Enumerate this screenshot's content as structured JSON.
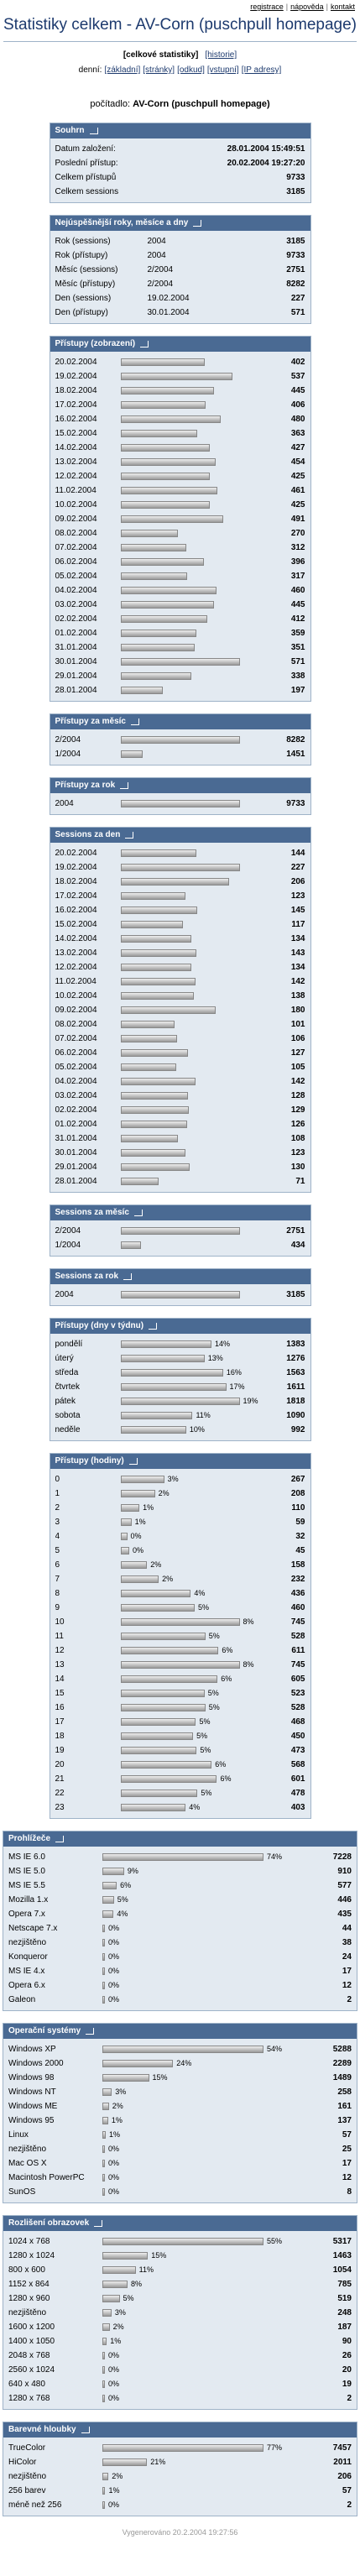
{
  "top_links": [
    "registrace",
    "nápověda",
    "kontakt"
  ],
  "title": "Statistiky celkem - AV-Corn (puschpull homepage)",
  "nav": {
    "current": "[celkové statistiky]",
    "history": "[historie]"
  },
  "daily": {
    "label": "denní:",
    "links": [
      "[základní]",
      "[stránky]",
      "[odkud]",
      "[vstupní]",
      "[IP adresy]"
    ]
  },
  "counter": {
    "label": "počítadlo:",
    "name": "AV-Corn (puschpull homepage)"
  },
  "sections": [
    {
      "title": "Souhrn",
      "rows": [
        {
          "label": "Datum založení:",
          "value": "28.01.2004 15:49:51"
        },
        {
          "label": "Poslední přístup:",
          "value": "20.02.2004 19:27:20"
        },
        {
          "label": "Celkem přístupů",
          "value": 9733
        },
        {
          "label": "Celkem sessions",
          "value": 3185
        }
      ]
    },
    {
      "title": "Nejúspěšnější roky, měsíce a dny",
      "rows": [
        {
          "label": "Rok (sessions)",
          "key": "2004",
          "value": 3185
        },
        {
          "label": "Rok (přístupy)",
          "key": "2004",
          "value": 9733
        },
        {
          "label": "Měsíc (sessions)",
          "key": "2/2004",
          "value": 2751
        },
        {
          "label": "Měsíc (přístupy)",
          "key": "2/2004",
          "value": 8282
        },
        {
          "label": "Den (sessions)",
          "key": "19.02.2004",
          "value": 227
        },
        {
          "label": "Den (přístupy)",
          "key": "30.01.2004",
          "value": 571
        }
      ]
    },
    {
      "title": "Přístupy (zobrazení)",
      "bars": [
        {
          "label": "20.02.2004",
          "value": 402
        },
        {
          "label": "19.02.2004",
          "value": 537
        },
        {
          "label": "18.02.2004",
          "value": 445
        },
        {
          "label": "17.02.2004",
          "value": 406
        },
        {
          "label": "16.02.2004",
          "value": 480
        },
        {
          "label": "15.02.2004",
          "value": 363
        },
        {
          "label": "14.02.2004",
          "value": 427
        },
        {
          "label": "13.02.2004",
          "value": 454
        },
        {
          "label": "12.02.2004",
          "value": 425
        },
        {
          "label": "11.02.2004",
          "value": 461
        },
        {
          "label": "10.02.2004",
          "value": 425
        },
        {
          "label": "09.02.2004",
          "value": 491
        },
        {
          "label": "08.02.2004",
          "value": 270
        },
        {
          "label": "07.02.2004",
          "value": 312
        },
        {
          "label": "06.02.2004",
          "value": 396
        },
        {
          "label": "05.02.2004",
          "value": 317
        },
        {
          "label": "04.02.2004",
          "value": 460
        },
        {
          "label": "03.02.2004",
          "value": 445
        },
        {
          "label": "02.02.2004",
          "value": 412
        },
        {
          "label": "01.02.2004",
          "value": 359
        },
        {
          "label": "31.01.2004",
          "value": 351
        },
        {
          "label": "30.01.2004",
          "value": 571
        },
        {
          "label": "29.01.2004",
          "value": 338
        },
        {
          "label": "28.01.2004",
          "value": 197
        }
      ]
    },
    {
      "title": "Přístupy za měsíc",
      "bars": [
        {
          "label": "2/2004",
          "value": 8282
        },
        {
          "label": "1/2004",
          "value": 1451
        }
      ]
    },
    {
      "title": "Přístupy za rok",
      "bars": [
        {
          "label": "2004",
          "value": 9733
        }
      ]
    },
    {
      "title": "Sessions za den",
      "bars": [
        {
          "label": "20.02.2004",
          "value": 144
        },
        {
          "label": "19.02.2004",
          "value": 227
        },
        {
          "label": "18.02.2004",
          "value": 206
        },
        {
          "label": "17.02.2004",
          "value": 123
        },
        {
          "label": "16.02.2004",
          "value": 145
        },
        {
          "label": "15.02.2004",
          "value": 117
        },
        {
          "label": "14.02.2004",
          "value": 134
        },
        {
          "label": "13.02.2004",
          "value": 143
        },
        {
          "label": "12.02.2004",
          "value": 134
        },
        {
          "label": "11.02.2004",
          "value": 142
        },
        {
          "label": "10.02.2004",
          "value": 138
        },
        {
          "label": "09.02.2004",
          "value": 180
        },
        {
          "label": "08.02.2004",
          "value": 101
        },
        {
          "label": "07.02.2004",
          "value": 106
        },
        {
          "label": "06.02.2004",
          "value": 127
        },
        {
          "label": "05.02.2004",
          "value": 105
        },
        {
          "label": "04.02.2004",
          "value": 142
        },
        {
          "label": "03.02.2004",
          "value": 128
        },
        {
          "label": "02.02.2004",
          "value": 129
        },
        {
          "label": "01.02.2004",
          "value": 126
        },
        {
          "label": "31.01.2004",
          "value": 108
        },
        {
          "label": "30.01.2004",
          "value": 123
        },
        {
          "label": "29.01.2004",
          "value": 130
        },
        {
          "label": "28.01.2004",
          "value": 71
        }
      ]
    },
    {
      "title": "Sessions za měsíc",
      "bars": [
        {
          "label": "2/2004",
          "value": 2751
        },
        {
          "label": "1/2004",
          "value": 434
        }
      ]
    },
    {
      "title": "Sessions za rok",
      "bars": [
        {
          "label": "2004",
          "value": 3185
        }
      ]
    },
    {
      "title": "Přístupy (dny v týdnu)",
      "bars": [
        {
          "label": "pondělí",
          "share": "14%",
          "value": 1383
        },
        {
          "label": "úterý",
          "share": "13%",
          "value": 1276
        },
        {
          "label": "středa",
          "share": "16%",
          "value": 1563
        },
        {
          "label": "čtvrtek",
          "share": "17%",
          "value": 1611
        },
        {
          "label": "pátek",
          "share": "19%",
          "value": 1818
        },
        {
          "label": "sobota",
          "share": "11%",
          "value": 1090
        },
        {
          "label": "neděle",
          "share": "10%",
          "value": 992
        }
      ]
    },
    {
      "title": "Přístupy (hodiny)",
      "bars": [
        {
          "label": "0",
          "share": "3%",
          "value": 267
        },
        {
          "label": "1",
          "share": "2%",
          "value": 208
        },
        {
          "label": "2",
          "share": "1%",
          "value": 110
        },
        {
          "label": "3",
          "share": "1%",
          "value": 59
        },
        {
          "label": "4",
          "share": "0%",
          "value": 32
        },
        {
          "label": "5",
          "share": "0%",
          "value": 45
        },
        {
          "label": "6",
          "share": "2%",
          "value": 158
        },
        {
          "label": "7",
          "share": "2%",
          "value": 232
        },
        {
          "label": "8",
          "share": "4%",
          "value": 436
        },
        {
          "label": "9",
          "share": "5%",
          "value": 460
        },
        {
          "label": "10",
          "share": "8%",
          "value": 745
        },
        {
          "label": "11",
          "share": "5%",
          "value": 528
        },
        {
          "label": "12",
          "share": "6%",
          "value": 611
        },
        {
          "label": "13",
          "share": "8%",
          "value": 745
        },
        {
          "label": "14",
          "share": "6%",
          "value": 605
        },
        {
          "label": "15",
          "share": "5%",
          "value": 523
        },
        {
          "label": "16",
          "share": "5%",
          "value": 528
        },
        {
          "label": "17",
          "share": "5%",
          "value": 468
        },
        {
          "label": "18",
          "share": "5%",
          "value": 450
        },
        {
          "label": "19",
          "share": "5%",
          "value": 473
        },
        {
          "label": "20",
          "share": "6%",
          "value": 568
        },
        {
          "label": "21",
          "share": "6%",
          "value": 601
        },
        {
          "label": "22",
          "share": "5%",
          "value": 478
        },
        {
          "label": "23",
          "share": "4%",
          "value": 403
        }
      ]
    }
  ],
  "detail_sections": [
    {
      "title": "Prohlížeče",
      "bars": [
        {
          "label": "MS IE 6.0",
          "share": "74%",
          "value": 7228
        },
        {
          "label": "MS IE 5.0",
          "share": "9%",
          "value": 910
        },
        {
          "label": "MS IE 5.5",
          "share": "6%",
          "value": 577
        },
        {
          "label": "Mozilla 1.x",
          "share": "5%",
          "value": 446
        },
        {
          "label": "Opera 7.x",
          "share": "4%",
          "value": 435
        },
        {
          "label": "Netscape 7.x",
          "share": "0%",
          "value": 44
        },
        {
          "label": "nezjištěno",
          "share": "0%",
          "value": 38
        },
        {
          "label": "Konqueror",
          "share": "0%",
          "value": 24
        },
        {
          "label": "MS IE 4.x",
          "share": "0%",
          "value": 17
        },
        {
          "label": "Opera 6.x",
          "share": "0%",
          "value": 12
        },
        {
          "label": "Galeon",
          "share": "0%",
          "value": 2
        }
      ]
    },
    {
      "title": "Operační systémy",
      "bars": [
        {
          "label": "Windows XP",
          "share": "54%",
          "value": 5288
        },
        {
          "label": "Windows 2000",
          "share": "24%",
          "value": 2289
        },
        {
          "label": "Windows 98",
          "share": "15%",
          "value": 1489
        },
        {
          "label": "Windows NT",
          "share": "3%",
          "value": 258
        },
        {
          "label": "Windows ME",
          "share": "2%",
          "value": 161
        },
        {
          "label": "Windows 95",
          "share": "1%",
          "value": 137
        },
        {
          "label": "Linux",
          "share": "1%",
          "value": 57
        },
        {
          "label": "nezjištěno",
          "share": "0%",
          "value": 25
        },
        {
          "label": "Mac OS X",
          "share": "0%",
          "value": 17
        },
        {
          "label": "Macintosh PowerPC",
          "share": "0%",
          "value": 12
        },
        {
          "label": "SunOS",
          "share": "0%",
          "value": 8
        }
      ]
    },
    {
      "title": "Rozlišení obrazovek",
      "bars": [
        {
          "label": "1024 x 768",
          "share": "55%",
          "value": 5317
        },
        {
          "label": "1280 x 1024",
          "share": "15%",
          "value": 1463
        },
        {
          "label": "800 x 600",
          "share": "11%",
          "value": 1054
        },
        {
          "label": "1152 x 864",
          "share": "8%",
          "value": 785
        },
        {
          "label": "1280 x 960",
          "share": "5%",
          "value": 519
        },
        {
          "label": "nezjištěno",
          "share": "3%",
          "value": 248
        },
        {
          "label": "1600 x 1200",
          "share": "2%",
          "value": 187
        },
        {
          "label": "1400 x 1050",
          "share": "1%",
          "value": 90
        },
        {
          "label": "2048 x 768",
          "share": "0%",
          "value": 26
        },
        {
          "label": "2560 x 1024",
          "share": "0%",
          "value": 20
        },
        {
          "label": "640 x 480",
          "share": "0%",
          "value": 19
        },
        {
          "label": "1280 x 768",
          "share": "0%",
          "value": 2
        }
      ]
    },
    {
      "title": "Barevné hloubky",
      "bars": [
        {
          "label": "TrueColor",
          "share": "77%",
          "value": 7457
        },
        {
          "label": "HiColor",
          "share": "21%",
          "value": 2011
        },
        {
          "label": "nezjištěno",
          "share": "2%",
          "value": 206
        },
        {
          "label": "256 barev",
          "share": "1%",
          "value": 57
        },
        {
          "label": "méně než 256",
          "share": "0%",
          "value": 2
        }
      ]
    }
  ],
  "footer": "Vygenerováno 20.2.2004 19:27:56"
}
